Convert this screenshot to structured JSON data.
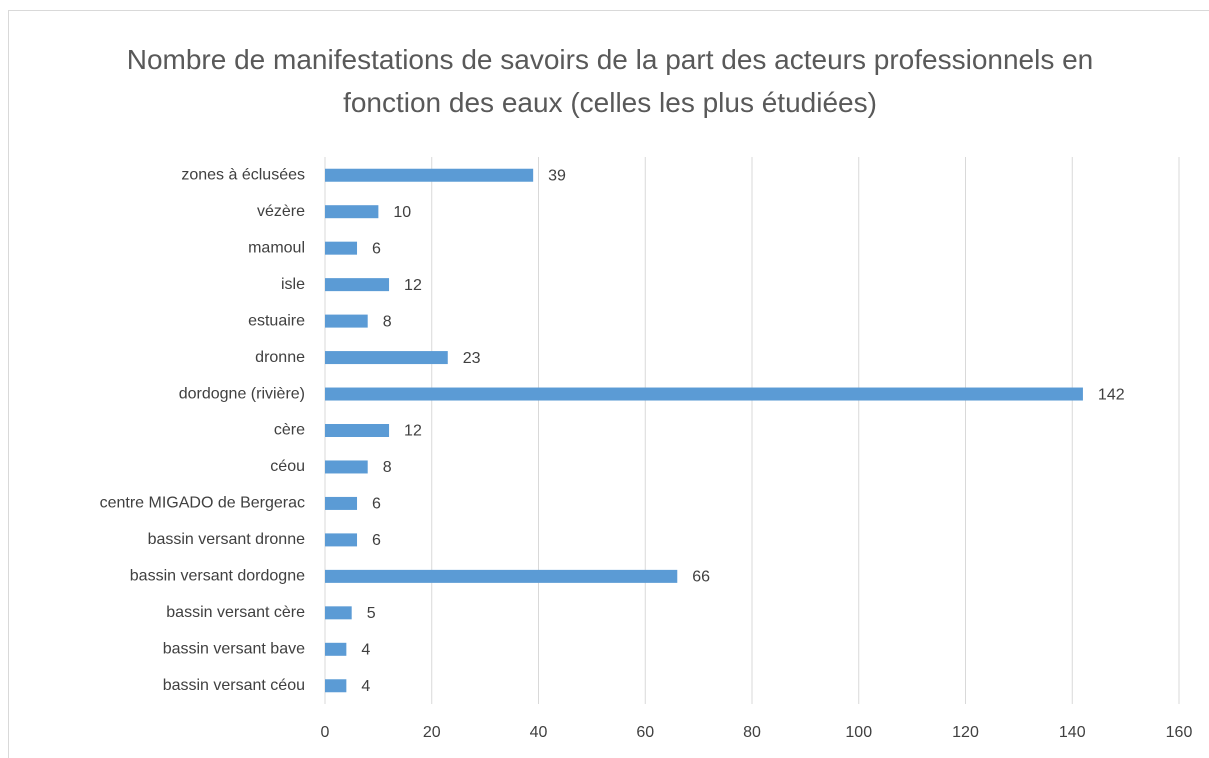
{
  "chart_data": {
    "type": "bar",
    "orientation": "horizontal",
    "title": "Nombre de manifestations de savoirs de la part des acteurs professionnels en fonction des eaux (celles les plus étudiées)",
    "categories": [
      "zones à éclusées",
      "vézère",
      "mamoul",
      "isle",
      "estuaire",
      "dronne",
      "dordogne (rivière)",
      "cère",
      "céou",
      "centre MIGADO de Bergerac",
      "bassin versant dronne",
      "bassin versant dordogne",
      "bassin versant cère",
      "bassin versant bave",
      "bassin versant céou"
    ],
    "values": [
      39,
      10,
      6,
      12,
      8,
      23,
      142,
      12,
      8,
      6,
      6,
      66,
      5,
      4,
      4
    ],
    "color": "#5b9bd5",
    "xlim": [
      0,
      160
    ],
    "xticks": [
      0,
      20,
      40,
      60,
      80,
      100,
      120,
      140,
      160
    ],
    "grid": true
  }
}
